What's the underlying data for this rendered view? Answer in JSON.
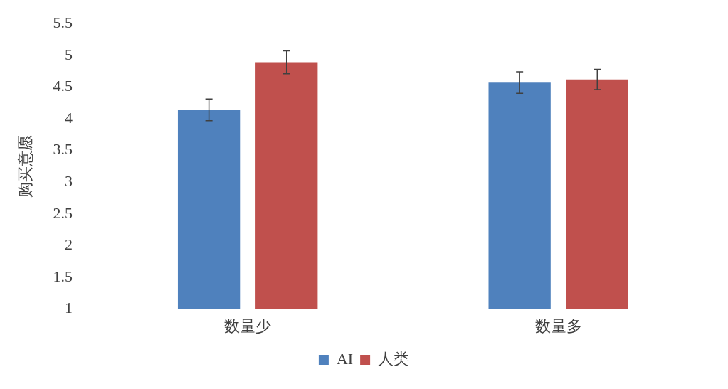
{
  "chart_data": {
    "type": "bar",
    "ylabel": "购买意愿",
    "categories": [
      "数量少",
      "数量多"
    ],
    "series": [
      {
        "name": "AI",
        "color": "#4f81bd",
        "values": [
          4.14,
          4.57
        ],
        "errors": [
          0.17,
          0.17
        ]
      },
      {
        "name": "人类",
        "color": "#c0504d",
        "values": [
          4.89,
          4.62
        ],
        "errors": [
          0.18,
          0.16
        ]
      }
    ],
    "ylim": [
      1,
      5.5
    ],
    "yticks": [
      1,
      1.5,
      2,
      2.5,
      3,
      3.5,
      4,
      4.5,
      5,
      5.5
    ],
    "grid": false,
    "legend": "bottom"
  }
}
